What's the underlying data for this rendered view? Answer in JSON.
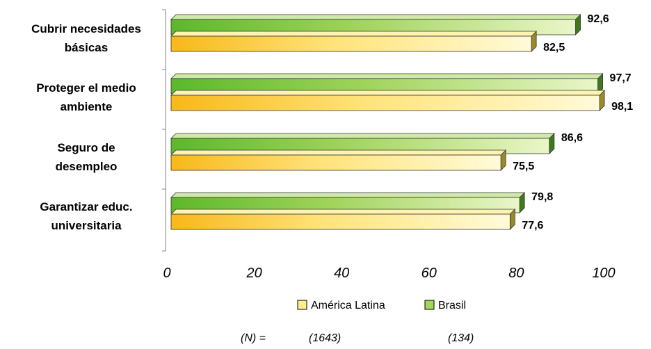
{
  "chart_data": {
    "type": "bar",
    "orientation": "horizontal",
    "categories": [
      [
        "Cubrir necesidades",
        "básicas"
      ],
      [
        "Proteger el medio",
        "ambiente"
      ],
      [
        "Seguro de",
        "desempleo"
      ],
      [
        "Garantizar educ.",
        "universitaria"
      ]
    ],
    "series": [
      {
        "name": "Brasil",
        "values": [
          92.6,
          97.7,
          86.6,
          79.8
        ],
        "labels": [
          "92,6",
          "97,7",
          "86,6",
          "79,8"
        ],
        "color": "#a4d65e"
      },
      {
        "name": "América Latina",
        "values": [
          82.5,
          98.1,
          75.5,
          77.6
        ],
        "labels": [
          "82,5",
          "98,1",
          "75,5",
          "77,6"
        ],
        "color": "#ffef8a"
      }
    ],
    "xlim": [
      0,
      100
    ],
    "xticks": [
      "0",
      "20",
      "40",
      "60",
      "80",
      "100"
    ],
    "legend": [
      {
        "name": "América Latina",
        "color": "#ffef8a"
      },
      {
        "name": "Brasil",
        "color": "#a4d65e"
      }
    ],
    "legend_position": "bottom",
    "grid": false
  },
  "footer": {
    "n_label": "(N) =",
    "n_latam": "(1643)",
    "n_brasil": "(134)"
  }
}
